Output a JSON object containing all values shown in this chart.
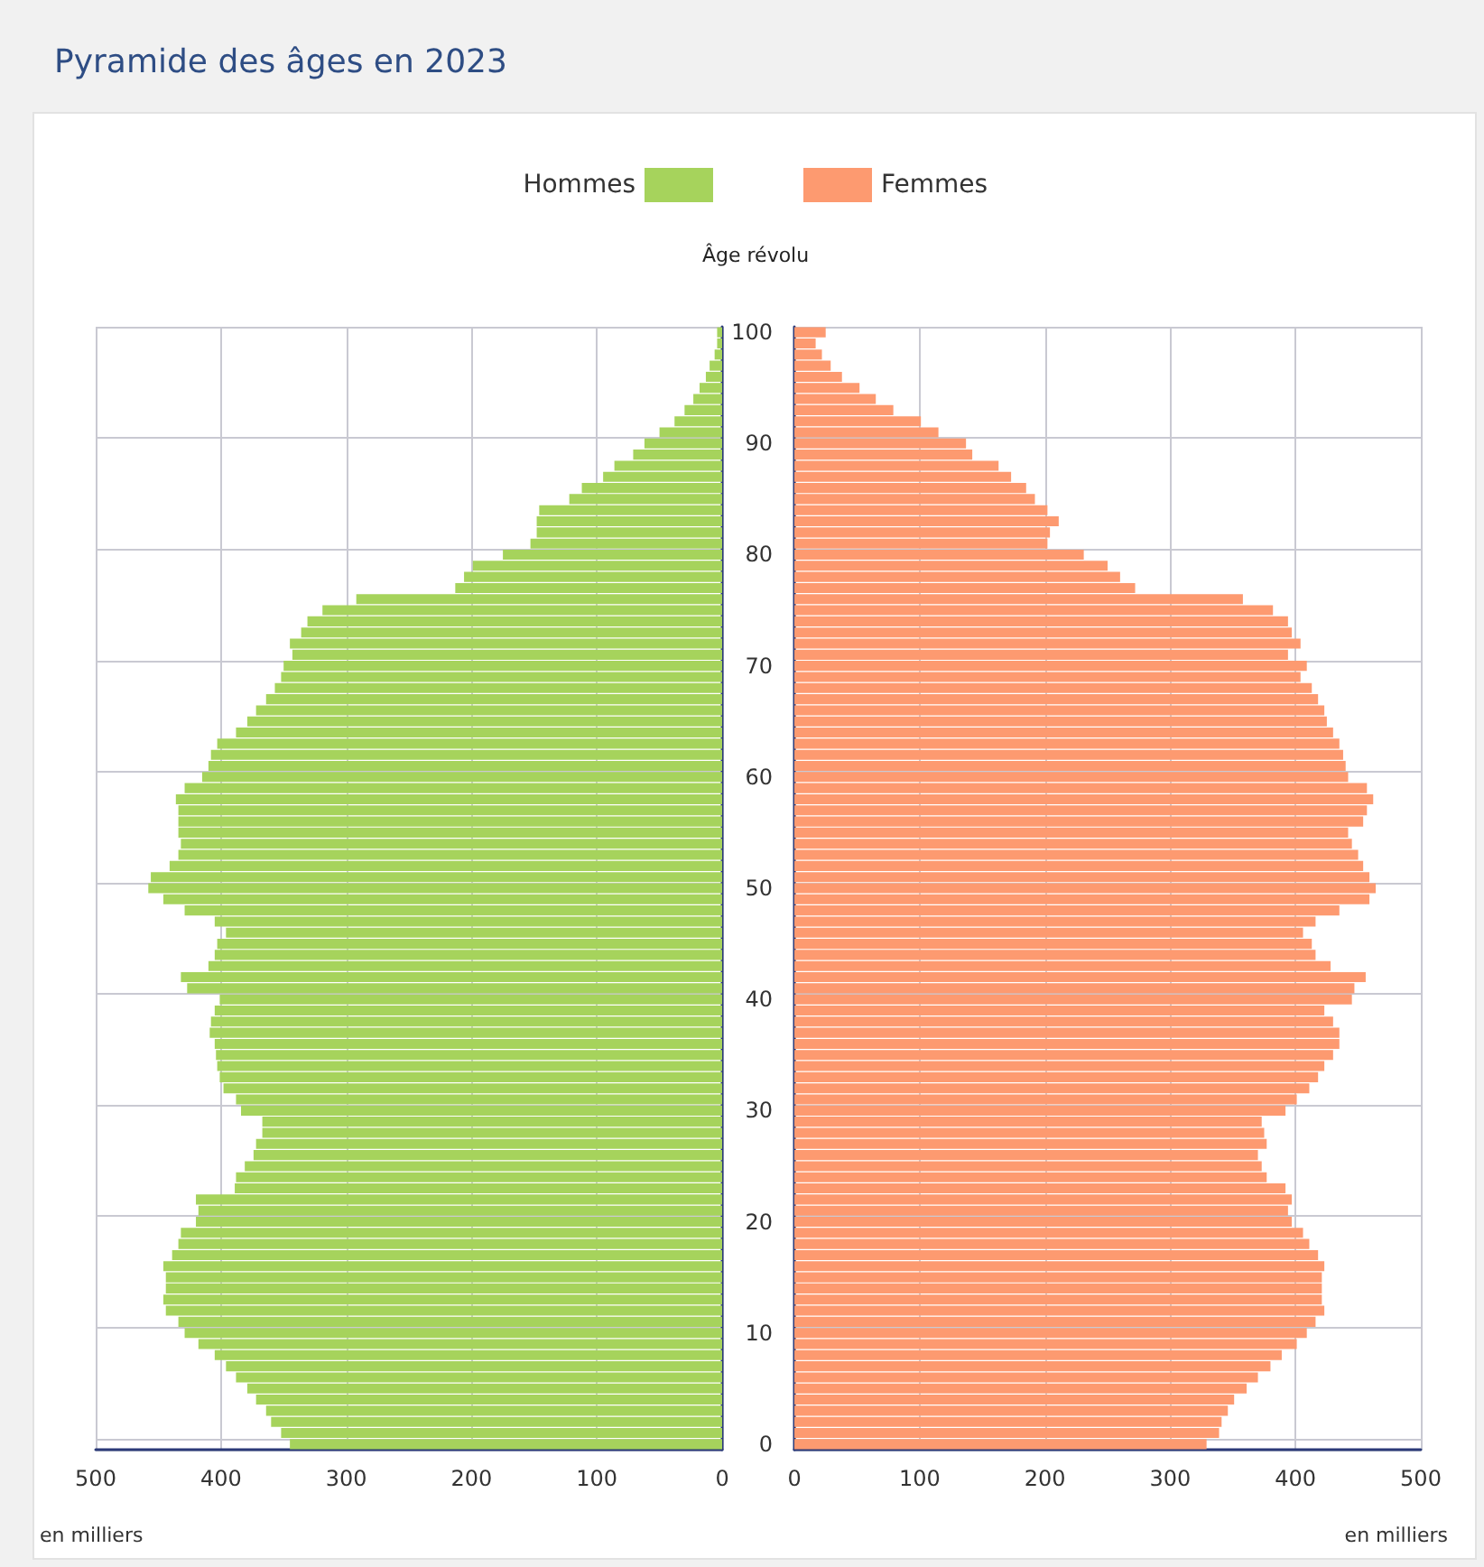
{
  "chart_data": [
    {
      "type": "bar",
      "orientation": "horizontal",
      "title": "Pyramide des âges en 2023",
      "xlabel": "en milliers",
      "categories": [
        "100",
        null,
        null,
        null,
        null,
        null,
        null,
        null,
        null,
        null,
        "90",
        null,
        null,
        null,
        null,
        null,
        null,
        null,
        null,
        null,
        "80",
        null,
        null,
        null,
        null,
        null,
        null,
        null,
        null,
        null,
        "70",
        null,
        null,
        null,
        null,
        null,
        null,
        null,
        null,
        null,
        "60",
        null,
        null,
        null,
        null,
        null,
        null,
        null,
        null,
        null,
        "50",
        null,
        null,
        null,
        null,
        null,
        null,
        null,
        null,
        null,
        "40",
        null,
        null,
        null,
        null,
        null,
        null,
        null,
        null,
        null,
        "30",
        null,
        null,
        null,
        null,
        null,
        null,
        null,
        null,
        null,
        "20",
        null,
        null,
        null,
        null,
        null,
        null,
        null,
        null,
        null,
        "10",
        null,
        null,
        null,
        null,
        null,
        null,
        null,
        null,
        null,
        "0"
      ],
      "series": [
        {
          "name": "Hommes",
          "color": "#a6d35c",
          "values": [
            4,
            4,
            6,
            10,
            13,
            18,
            23,
            30,
            38,
            50,
            62,
            71,
            86,
            95,
            112,
            122,
            146,
            148,
            148,
            153,
            175,
            199,
            206,
            213,
            292,
            319,
            331,
            336,
            345,
            343,
            350,
            352,
            357,
            364,
            372,
            379,
            388,
            403,
            408,
            410,
            415,
            429,
            436,
            434,
            434,
            434,
            432,
            434,
            441,
            456,
            458,
            446,
            429,
            405,
            396,
            403,
            405,
            410,
            432,
            427,
            401,
            405,
            408,
            409,
            405,
            404,
            403,
            401,
            398,
            388,
            384,
            367,
            367,
            372,
            374,
            381,
            388,
            389,
            420,
            418,
            420,
            432,
            434,
            439,
            446,
            444,
            444,
            446,
            444,
            434,
            429,
            418,
            405,
            396,
            388,
            379,
            372,
            364,
            360,
            352,
            345
          ]
        }
      ],
      "xlim": [
        500,
        0
      ],
      "xticks": [
        500,
        400,
        300,
        200,
        100,
        0
      ],
      "grid": true,
      "legend": "top right",
      "tick_labels": "x"
    },
    {
      "type": "bar",
      "orientation": "horizontal",
      "xlabel": "en milliers",
      "ylabel": "Âge révolu",
      "categories": [
        "100",
        null,
        null,
        null,
        null,
        null,
        null,
        null,
        null,
        null,
        "90",
        null,
        null,
        null,
        null,
        null,
        null,
        null,
        null,
        null,
        "80",
        null,
        null,
        null,
        null,
        null,
        null,
        null,
        null,
        null,
        "70",
        null,
        null,
        null,
        null,
        null,
        null,
        null,
        null,
        null,
        "60",
        null,
        null,
        null,
        null,
        null,
        null,
        null,
        null,
        null,
        "50",
        null,
        null,
        null,
        null,
        null,
        null,
        null,
        null,
        null,
        "40",
        null,
        null,
        null,
        null,
        null,
        null,
        null,
        null,
        null,
        "30",
        null,
        null,
        null,
        null,
        null,
        null,
        null,
        null,
        null,
        "20",
        null,
        null,
        null,
        null,
        null,
        null,
        null,
        null,
        null,
        "10",
        null,
        null,
        null,
        null,
        null,
        null,
        null,
        null,
        null,
        "0"
      ],
      "series": [
        {
          "name": "Femmes",
          "color": "#fd9a70",
          "values": [
            25,
            17,
            22,
            29,
            38,
            52,
            65,
            79,
            101,
            115,
            137,
            142,
            163,
            173,
            185,
            192,
            202,
            211,
            204,
            202,
            231,
            250,
            260,
            272,
            358,
            382,
            394,
            397,
            404,
            394,
            409,
            404,
            413,
            418,
            423,
            425,
            430,
            435,
            438,
            440,
            442,
            457,
            462,
            457,
            454,
            442,
            445,
            450,
            454,
            459,
            464,
            459,
            435,
            416,
            406,
            413,
            416,
            428,
            456,
            447,
            445,
            423,
            430,
            435,
            435,
            430,
            423,
            418,
            411,
            401,
            392,
            373,
            375,
            377,
            370,
            373,
            377,
            392,
            397,
            394,
            397,
            406,
            411,
            418,
            423,
            421,
            421,
            421,
            423,
            416,
            409,
            401,
            389,
            380,
            370,
            361,
            351,
            346,
            341,
            339,
            329
          ]
        }
      ],
      "xlim": [
        0,
        500
      ],
      "xticks": [
        0,
        100,
        200,
        300,
        400,
        500
      ],
      "grid": true,
      "legend": "top left"
    }
  ]
}
